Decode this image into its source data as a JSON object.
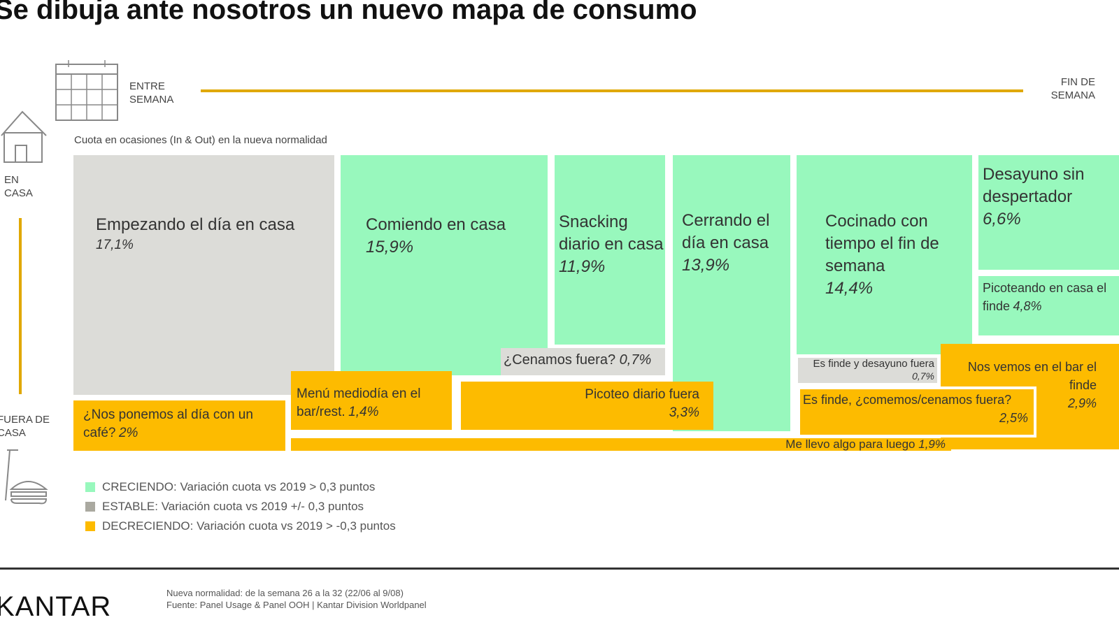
{
  "title": "Se dibuja ante nosotros un nuevo mapa de consumo",
  "axis": {
    "weekday": "ENTRE SEMANA",
    "weekend": "FIN DE SEMANA",
    "home": "EN CASA",
    "out": "FUERA DE CASA"
  },
  "subtitle": "Cuota en ocasiones (In & Out) en la nueva normalidad",
  "colors": {
    "growing": "#98f8bd",
    "stable": "#dcdcd8",
    "decreasing": "#fdbb00",
    "axis": "#e0a800"
  },
  "cells": [
    {
      "label": "Empezando el día en casa",
      "value": "17,1%",
      "status": "stable"
    },
    {
      "label": "Comiendo en casa",
      "value": "15,9%",
      "status": "growing"
    },
    {
      "label": "Snacking diario en casa",
      "value": "11,9%",
      "status": "growing"
    },
    {
      "label": "¿Cenamos fuera?",
      "value": "0,7%",
      "status": "stable"
    },
    {
      "label": "Cerrando el día en casa",
      "value": "13,9%",
      "status": "growing"
    },
    {
      "label": "Cocinado con tiempo el fin de semana",
      "value": "14,4%",
      "status": "growing"
    },
    {
      "label": "Desayuno sin despertador",
      "value": "6,6%",
      "status": "growing"
    },
    {
      "label": "Picoteando en casa el finde",
      "value": "4,8%",
      "status": "growing"
    },
    {
      "label": "Es finde y desayuno fuera",
      "value": "0,7%",
      "status": "stable"
    },
    {
      "label": "Nos vemos en el bar el finde",
      "value": "2,9%",
      "status": "decreasing"
    },
    {
      "label": "Es finde, ¿comemos/cenamos fuera?",
      "value": "2,5%",
      "status": "decreasing"
    },
    {
      "label": "¿Nos ponemos al día con un café?",
      "value": "2%",
      "status": "decreasing"
    },
    {
      "label": "Menú mediodía en el bar/rest.",
      "value": "1,4%",
      "status": "decreasing"
    },
    {
      "label": "Picoteo diario fuera",
      "value": "3,3%",
      "status": "decreasing"
    },
    {
      "label": "Me llevo algo para luego",
      "value": "1,9%",
      "status": "decreasing"
    }
  ],
  "legend": [
    "CRECIENDO: Variación cuota vs 2019 > 0,3 puntos",
    "ESTABLE: Variación cuota vs 2019  +/- 0,3 puntos",
    "DECRECIENDO: Variación cuota vs 2019 > -0,3 puntos"
  ],
  "footer": {
    "logo": "KANTAR",
    "note1": "Nueva normalidad: de la semana 26 a la 32 (22/06 al 9/08)",
    "note2": "Fuente: Panel Usage & Panel OOH | Kantar Division Worldpanel"
  }
}
